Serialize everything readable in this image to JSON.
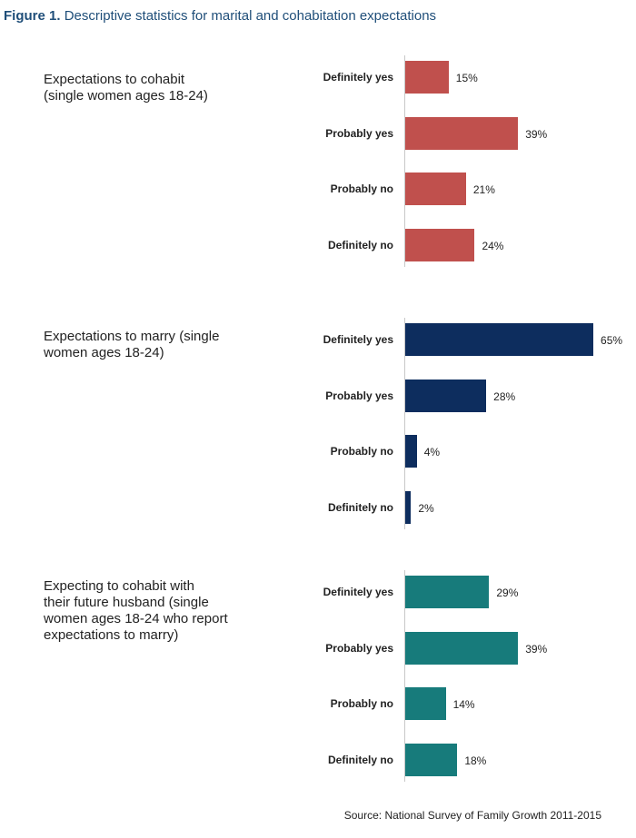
{
  "figure_label": "Figure 1.",
  "figure_title": "Descriptive statistics for marital and cohabitation expectations",
  "source": "Source: National Survey of Family Growth 2011-2015",
  "chart_data": [
    {
      "type": "bar",
      "orientation": "horizontal",
      "title": "Expectations to cohabit\n(single women ages 18-24)",
      "categories": [
        "Definitely yes",
        "Probably yes",
        "Probably no",
        "Definitely no"
      ],
      "values": [
        15,
        39,
        21,
        24
      ],
      "value_labels": [
        "15%",
        "39%",
        "21%",
        "24%"
      ],
      "color": "#c0504d"
    },
    {
      "type": "bar",
      "orientation": "horizontal",
      "title": "Expectations to marry (single\nwomen ages 18-24)",
      "categories": [
        "Definitely yes",
        "Probably yes",
        "Probably no",
        "Definitely no"
      ],
      "values": [
        65,
        28,
        4,
        2
      ],
      "value_labels": [
        "65%",
        "28%",
        "4%",
        "2%"
      ],
      "color": "#0d2d5e"
    },
    {
      "type": "bar",
      "orientation": "horizontal",
      "title": "Expecting to cohabit with\ntheir future husband (single\nwomen ages 18-24 who report\nexpectations to marry)",
      "categories": [
        "Definitely yes",
        "Probably yes",
        "Probably no",
        "Definitely no"
      ],
      "values": [
        29,
        39,
        14,
        18
      ],
      "value_labels": [
        "29%",
        "39%",
        "14%",
        "18%"
      ],
      "color": "#177b7b"
    }
  ]
}
